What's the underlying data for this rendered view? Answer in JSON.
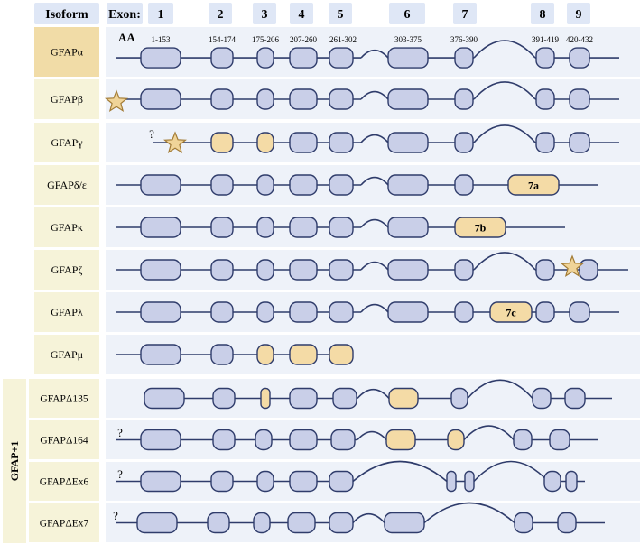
{
  "header": {
    "isoform_label": "Isoform",
    "exon_label": "Exon:",
    "exon_numbers": [
      "1",
      "2",
      "3",
      "4",
      "5",
      "6",
      "7",
      "8",
      "9"
    ],
    "aa_label": "AA",
    "aa_ranges": [
      "1-153",
      "154-174",
      "175-206",
      "207-260",
      "261-302",
      "303-375",
      "376-390",
      "391-419",
      "420-432"
    ]
  },
  "group_label": "GFAP+1",
  "unknown_mark": "?",
  "colors": {
    "header_box": "#dfe7f6",
    "row_band": "#eef2f9",
    "label_alpha": "#f1dca7",
    "label_default": "#f6f3d9",
    "exon_blue": "#c9cfe8",
    "exon_tan": "#f4dba6",
    "stroke": "#2f3c6b",
    "star": "#f0d498",
    "star_stroke": "#a27b35"
  },
  "isoforms": [
    {
      "name": "GFAPα",
      "star": false,
      "question": false,
      "exons": [
        {
          "exon": "1",
          "color": "blue"
        },
        {
          "exon": "2",
          "color": "blue"
        },
        {
          "exon": "3",
          "color": "blue"
        },
        {
          "exon": "4",
          "color": "blue"
        },
        {
          "exon": "5",
          "color": "blue"
        },
        {
          "exon": "6",
          "color": "blue"
        },
        {
          "exon": "7",
          "color": "blue"
        },
        {
          "exon": "8",
          "color": "blue"
        },
        {
          "exon": "9",
          "color": "blue"
        }
      ]
    },
    {
      "name": "GFAPβ",
      "star": true,
      "question": false,
      "exons": [
        {
          "exon": "1",
          "color": "blue"
        },
        {
          "exon": "2",
          "color": "blue"
        },
        {
          "exon": "3",
          "color": "blue"
        },
        {
          "exon": "4",
          "color": "blue"
        },
        {
          "exon": "5",
          "color": "blue"
        },
        {
          "exon": "6",
          "color": "blue"
        },
        {
          "exon": "7",
          "color": "blue"
        },
        {
          "exon": "8",
          "color": "blue"
        },
        {
          "exon": "9",
          "color": "blue"
        }
      ]
    },
    {
      "name": "GFAPγ",
      "star": true,
      "question": true,
      "exons": [
        {
          "exon": "2",
          "color": "tan"
        },
        {
          "exon": "3",
          "color": "tan"
        },
        {
          "exon": "4",
          "color": "blue"
        },
        {
          "exon": "5",
          "color": "blue"
        },
        {
          "exon": "6",
          "color": "blue"
        },
        {
          "exon": "7",
          "color": "blue"
        },
        {
          "exon": "8",
          "color": "blue"
        },
        {
          "exon": "9",
          "color": "blue"
        }
      ]
    },
    {
      "name": "GFAPδ/ε",
      "star": false,
      "question": false,
      "exons": [
        {
          "exon": "1",
          "color": "blue"
        },
        {
          "exon": "2",
          "color": "blue"
        },
        {
          "exon": "3",
          "color": "blue"
        },
        {
          "exon": "4",
          "color": "blue"
        },
        {
          "exon": "5",
          "color": "blue"
        },
        {
          "exon": "6",
          "color": "blue"
        },
        {
          "exon": "7",
          "color": "blue"
        },
        {
          "exon": "7a",
          "color": "tan",
          "label": "7a"
        }
      ]
    },
    {
      "name": "GFAPκ",
      "star": false,
      "question": false,
      "exons": [
        {
          "exon": "1",
          "color": "blue"
        },
        {
          "exon": "2",
          "color": "blue"
        },
        {
          "exon": "3",
          "color": "blue"
        },
        {
          "exon": "4",
          "color": "blue"
        },
        {
          "exon": "5",
          "color": "blue"
        },
        {
          "exon": "6",
          "color": "blue"
        },
        {
          "exon": "7b",
          "color": "tan",
          "label": "7b"
        }
      ]
    },
    {
      "name": "GFAPζ",
      "star": true,
      "question": false,
      "exons": [
        {
          "exon": "1",
          "color": "blue"
        },
        {
          "exon": "2",
          "color": "blue"
        },
        {
          "exon": "3",
          "color": "blue"
        },
        {
          "exon": "4",
          "color": "blue"
        },
        {
          "exon": "5",
          "color": "blue"
        },
        {
          "exon": "6",
          "color": "blue"
        },
        {
          "exon": "7",
          "color": "blue"
        },
        {
          "exon": "8",
          "color": "blue"
        },
        {
          "exon": "9",
          "color": "blue"
        }
      ]
    },
    {
      "name": "GFAPλ",
      "star": false,
      "question": false,
      "exons": [
        {
          "exon": "1",
          "color": "blue"
        },
        {
          "exon": "2",
          "color": "blue"
        },
        {
          "exon": "3",
          "color": "blue"
        },
        {
          "exon": "4",
          "color": "blue"
        },
        {
          "exon": "5",
          "color": "blue"
        },
        {
          "exon": "6",
          "color": "blue"
        },
        {
          "exon": "7",
          "color": "blue"
        },
        {
          "exon": "7c",
          "color": "tan",
          "label": "7c"
        },
        {
          "exon": "8",
          "color": "blue"
        },
        {
          "exon": "9",
          "color": "blue"
        }
      ]
    },
    {
      "name": "GFAPμ",
      "star": false,
      "question": false,
      "exons": [
        {
          "exon": "1",
          "color": "blue"
        },
        {
          "exon": "2",
          "color": "blue"
        },
        {
          "exon": "3",
          "color": "tan"
        },
        {
          "exon": "4",
          "color": "tan"
        },
        {
          "exon": "5",
          "color": "tan"
        }
      ]
    },
    {
      "name": "GFAPΔ135",
      "star": false,
      "question": false,
      "exons": [
        {
          "exon": "1",
          "color": "blue"
        },
        {
          "exon": "2",
          "color": "blue"
        },
        {
          "exon": "3",
          "color": "tan"
        },
        {
          "exon": "4",
          "color": "blue"
        },
        {
          "exon": "5",
          "color": "blue"
        },
        {
          "exon": "6",
          "color": "tan"
        },
        {
          "exon": "7",
          "color": "blue"
        },
        {
          "exon": "8",
          "color": "blue"
        },
        {
          "exon": "9",
          "color": "blue"
        }
      ]
    },
    {
      "name": "GFAPΔ164",
      "star": false,
      "question": true,
      "exons": [
        {
          "exon": "1",
          "color": "blue"
        },
        {
          "exon": "2",
          "color": "blue"
        },
        {
          "exon": "3",
          "color": "blue"
        },
        {
          "exon": "4",
          "color": "blue"
        },
        {
          "exon": "5",
          "color": "blue"
        },
        {
          "exon": "6",
          "color": "tan"
        },
        {
          "exon": "7",
          "color": "tan"
        },
        {
          "exon": "8",
          "color": "blue"
        },
        {
          "exon": "9",
          "color": "blue"
        }
      ]
    },
    {
      "name": "GFAPΔEx6",
      "star": false,
      "question": true,
      "exons": [
        {
          "exon": "1",
          "color": "blue"
        },
        {
          "exon": "2",
          "color": "blue"
        },
        {
          "exon": "3",
          "color": "blue"
        },
        {
          "exon": "4",
          "color": "blue"
        },
        {
          "exon": "5",
          "color": "blue"
        },
        {
          "exon": "7",
          "color": "blue"
        },
        {
          "exon": "7",
          "color": "blue"
        },
        {
          "exon": "8",
          "color": "blue"
        },
        {
          "exon": "9",
          "color": "blue"
        }
      ]
    },
    {
      "name": "GFAPΔEx7",
      "star": false,
      "question": true,
      "exons": [
        {
          "exon": "1",
          "color": "blue"
        },
        {
          "exon": "2",
          "color": "blue"
        },
        {
          "exon": "3",
          "color": "blue"
        },
        {
          "exon": "4",
          "color": "blue"
        },
        {
          "exon": "5",
          "color": "blue"
        },
        {
          "exon": "6",
          "color": "blue"
        },
        {
          "exon": "8",
          "color": "blue"
        },
        {
          "exon": "9",
          "color": "blue"
        }
      ]
    }
  ]
}
